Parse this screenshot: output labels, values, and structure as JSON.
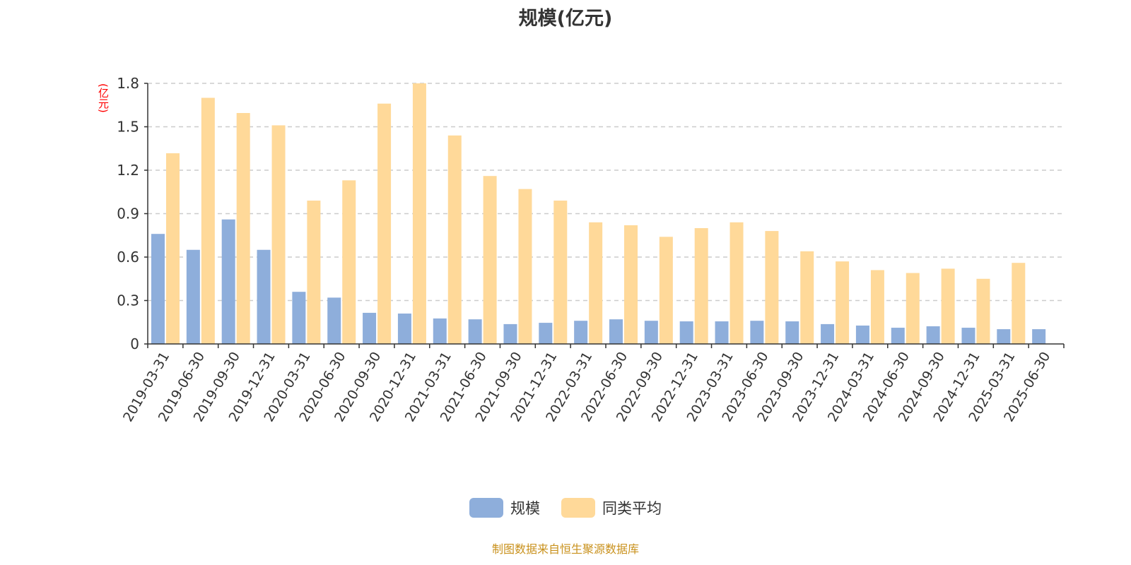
{
  "chart_data": {
    "type": "bar",
    "title": "规模(亿元)",
    "ylabel": "(亿元)",
    "ylim": [
      0,
      1.8
    ],
    "yticks": [
      "0",
      "0.3",
      "0.6",
      "0.9",
      "1.2",
      "1.5",
      "1.8"
    ],
    "grid": true,
    "legend_placement": "bottom",
    "categories": [
      "2019-03-31",
      "2019-06-30",
      "2019-09-30",
      "2019-12-31",
      "2020-03-31",
      "2020-06-30",
      "2020-09-30",
      "2020-12-31",
      "2021-03-31",
      "2021-06-30",
      "2021-09-30",
      "2021-12-31",
      "2022-03-31",
      "2022-06-30",
      "2022-09-30",
      "2022-12-31",
      "2023-03-31",
      "2023-06-30",
      "2023-09-30",
      "2023-12-31",
      "2024-03-31",
      "2024-06-30",
      "2024-09-30",
      "2024-12-31",
      "2025-03-31",
      "2025-06-30"
    ],
    "series": [
      {
        "name": "规模",
        "color": "#8eaedb",
        "values": [
          0.76,
          0.65,
          0.86,
          0.65,
          0.36,
          0.32,
          0.215,
          0.21,
          0.176,
          0.17,
          0.137,
          0.146,
          0.16,
          0.17,
          0.16,
          0.156,
          0.156,
          0.16,
          0.156,
          0.137,
          0.127,
          0.112,
          0.122,
          0.112,
          0.102,
          0.102
        ]
      },
      {
        "name": "同类平均",
        "color": "#ffd999",
        "values": [
          1.317,
          1.7,
          1.595,
          1.51,
          0.99,
          1.13,
          1.66,
          1.8,
          1.44,
          1.16,
          1.07,
          0.99,
          0.84,
          0.82,
          0.74,
          0.8,
          0.84,
          0.78,
          0.64,
          0.57,
          0.51,
          0.49,
          0.52,
          0.45,
          0.56,
          null
        ]
      }
    ]
  },
  "source": "制图数据来自恒生聚源数据库"
}
